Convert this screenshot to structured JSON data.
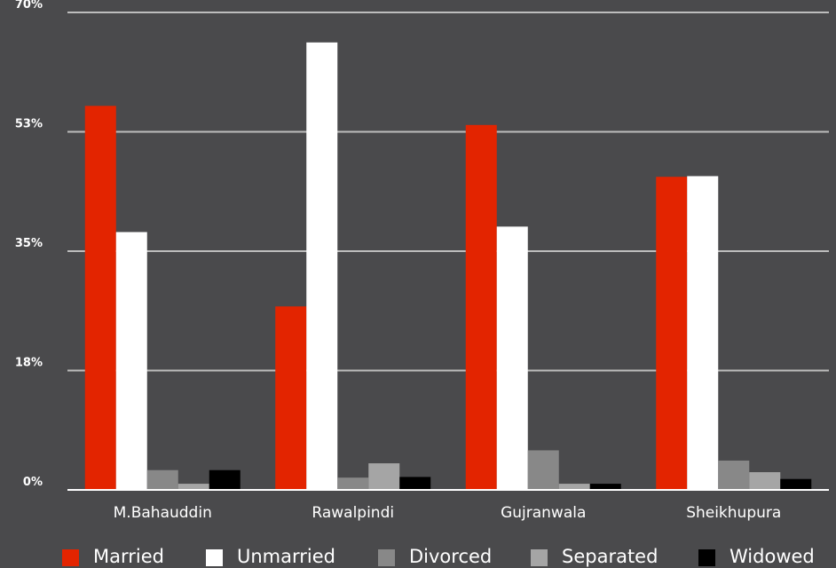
{
  "chart_data": {
    "type": "bar",
    "title": "",
    "xlabel": "",
    "ylabel": "",
    "categories": [
      "M.Bahauddin",
      "Rawalpindi",
      "Gujranwala",
      "Sheikhupura"
    ],
    "series": [
      {
        "name": "Married",
        "color": "#e32400",
        "values": [
          56.3,
          26.9,
          53.5,
          45.9
        ]
      },
      {
        "name": "Unmarried",
        "color": "#ffffff",
        "values": [
          37.8,
          65.6,
          38.6,
          46.0
        ]
      },
      {
        "name": "Divorced",
        "color": "#888888",
        "values": [
          2.9,
          1.8,
          5.8,
          4.3
        ]
      },
      {
        "name": "Separated",
        "color": "#a5a5a5",
        "values": [
          0.9,
          3.9,
          0.9,
          2.6
        ]
      },
      {
        "name": "Widowed",
        "color": "#000000",
        "values": [
          2.9,
          1.9,
          0.9,
          1.6
        ]
      }
    ],
    "yticks": [
      "0%",
      "18%",
      "35%",
      "53%",
      "70%"
    ],
    "ylim": [
      0,
      70
    ],
    "grid": true,
    "legend_position": "bottom"
  }
}
